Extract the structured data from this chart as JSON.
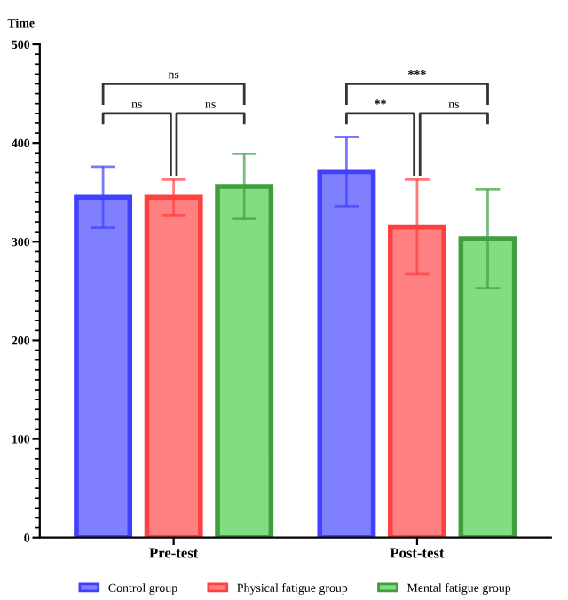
{
  "chart_data": {
    "type": "bar",
    "ylabel": "Time",
    "categories": [
      "Pre-test",
      "Post-test"
    ],
    "series": [
      {
        "name": "Control group",
        "color": "#8080ff",
        "values": [
          345,
          371
        ],
        "errors": [
          31,
          35
        ]
      },
      {
        "name": "Physical fatigue group",
        "color": "#ff8080",
        "values": [
          345,
          315
        ],
        "errors": [
          18,
          48
        ]
      },
      {
        "name": "Mental fatigue group",
        "color": "#80dd80",
        "values": [
          356,
          303
        ],
        "errors": [
          33,
          50
        ]
      }
    ],
    "ylim": [
      0,
      500
    ],
    "yticks": [
      0,
      100,
      200,
      300,
      400,
      500
    ],
    "grid": false,
    "legend": "bottom",
    "annotations": [
      "ns",
      "ns",
      "ns",
      "**",
      "ns",
      "***"
    ]
  }
}
